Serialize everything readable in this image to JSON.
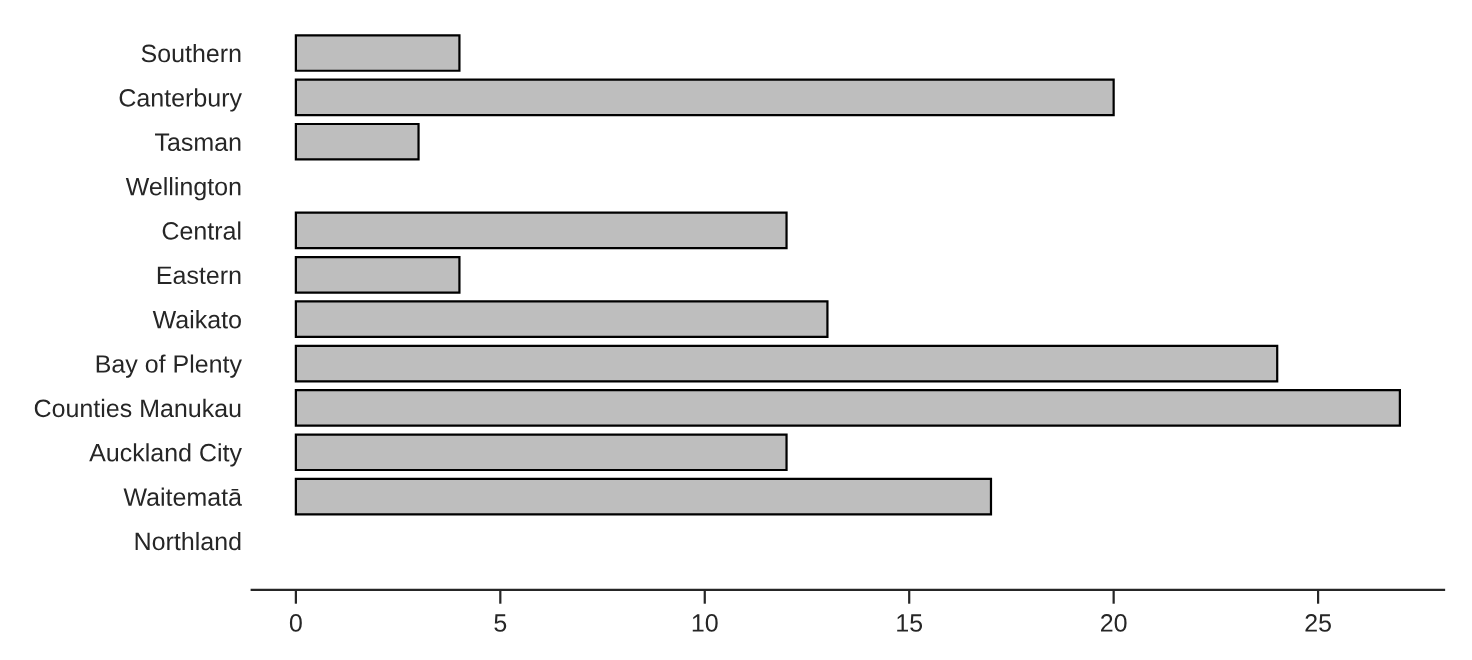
{
  "chart_data": {
    "type": "bar",
    "orientation": "horizontal",
    "categories": [
      "Southern",
      "Canterbury",
      "Tasman",
      "Wellington",
      "Central",
      "Eastern",
      "Waikato",
      "Bay of Plenty",
      "Counties Manukau",
      "Auckland City",
      "Waitematā",
      "Northland"
    ],
    "values": [
      4,
      20,
      3,
      null,
      12,
      4,
      13,
      24,
      27,
      12,
      17,
      null
    ],
    "color": "#bebebe",
    "xlim": [
      -1.08,
      28.08
    ],
    "xticks": [
      0,
      5,
      10,
      15,
      20,
      25
    ],
    "grid": false,
    "legend": false
  }
}
